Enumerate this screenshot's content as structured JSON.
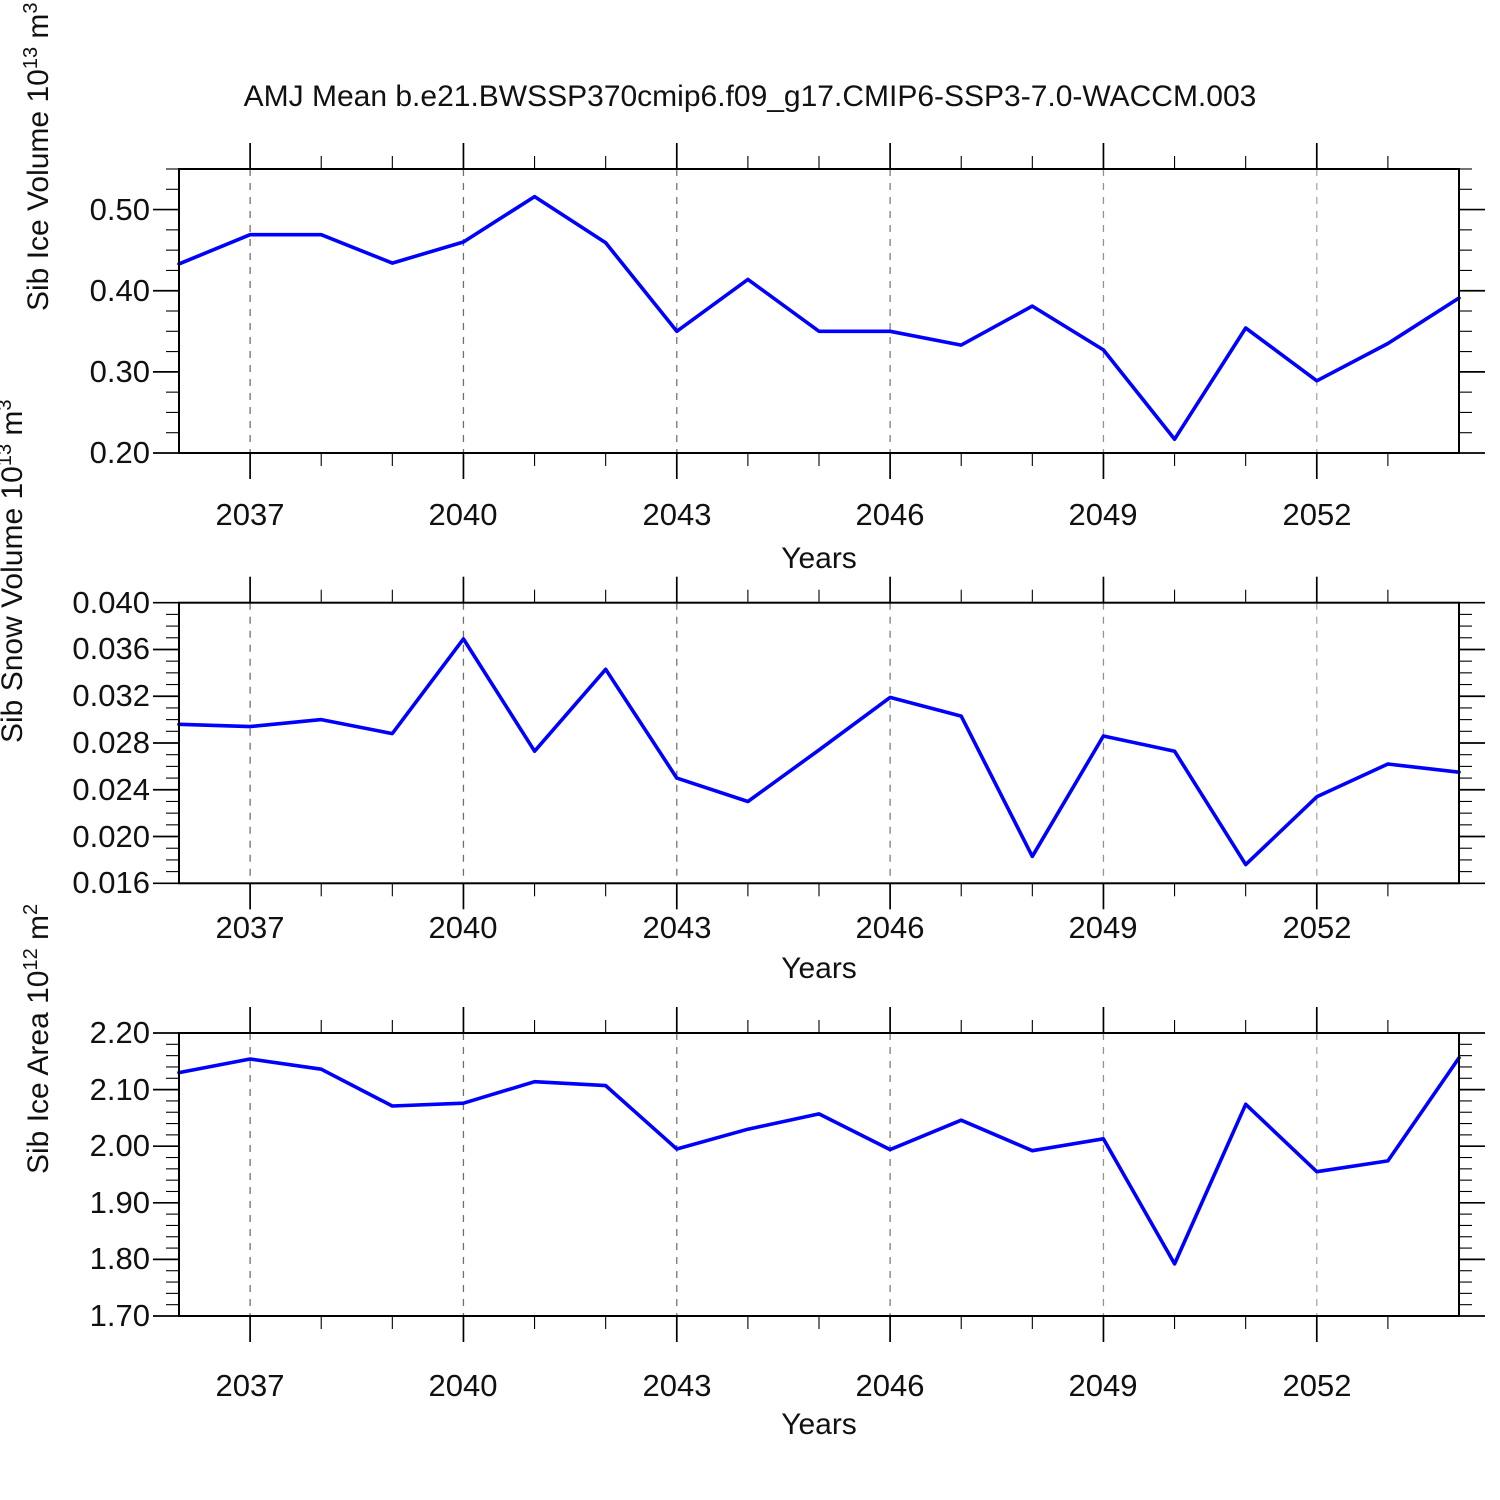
{
  "title": "AMJ Mean b.e21.BWSSP370cmip6.f09_g17.CMIP6-SSP3-7.0-WACCM.003",
  "figure": {
    "background": "#ffffff",
    "line_color": "#0000ff",
    "grid_color": "#7a7a7a"
  },
  "ylabels_rich": [
    {
      "base": "Sib Ice Volume 10",
      "exp": "13",
      "unit": " m",
      "unit_exp": "3"
    },
    {
      "base": "Sib Snow Volume 10",
      "exp": "13",
      "unit": " m",
      "unit_exp": "3"
    },
    {
      "base": "Sib Ice Area 10",
      "exp": "12",
      "unit": " m",
      "unit_exp": "2"
    }
  ],
  "chart_data": [
    {
      "type": "line",
      "title": "",
      "ylabel": "Sib Ice Volume 10^13 m^3",
      "xlabel": "Years",
      "x": [
        2036,
        2037,
        2038,
        2039,
        2040,
        2041,
        2042,
        2043,
        2044,
        2045,
        2046,
        2047,
        2048,
        2049,
        2050,
        2051,
        2052,
        2053,
        2054
      ],
      "values": [
        0.433,
        0.469,
        0.469,
        0.434,
        0.46,
        0.516,
        0.459,
        0.35,
        0.414,
        0.35,
        0.35,
        0.333,
        0.381,
        0.327,
        0.217,
        0.354,
        0.289,
        0.335,
        0.391
      ],
      "xlim": [
        2036,
        2054
      ],
      "ylim": [
        0.2,
        0.55
      ],
      "yticks": [
        0.2,
        0.3,
        0.4,
        0.5
      ],
      "ytick_labels": [
        "0.20",
        "0.30",
        "0.40",
        "0.50"
      ],
      "y_minor_step": 0.025,
      "xtick_years": [
        2037,
        2040,
        2043,
        2046,
        2049,
        2052
      ],
      "xtick_labels": [
        "2037",
        "2040",
        "2043",
        "2046",
        "2049",
        "2052"
      ],
      "x_minor_step": 1,
      "grid": "vertical-dashed-at-major-xticks",
      "legend": "none",
      "line_color": "#0000ff"
    },
    {
      "type": "line",
      "title": "",
      "ylabel": "Sib Snow Volume 10^13 m^3",
      "xlabel": "Years",
      "x": [
        2036,
        2037,
        2038,
        2039,
        2040,
        2041,
        2042,
        2043,
        2044,
        2045,
        2046,
        2047,
        2048,
        2049,
        2050,
        2051,
        2052,
        2053,
        2054
      ],
      "values": [
        0.0296,
        0.0294,
        0.03,
        0.0288,
        0.0369,
        0.0273,
        0.0343,
        0.025,
        0.023,
        0.0274,
        0.0319,
        0.0303,
        0.0183,
        0.0286,
        0.0273,
        0.0176,
        0.0234,
        0.0262,
        0.0255
      ],
      "xlim": [
        2036,
        2054
      ],
      "ylim": [
        0.016,
        0.04
      ],
      "yticks": [
        0.016,
        0.02,
        0.024,
        0.028,
        0.032,
        0.036,
        0.04
      ],
      "ytick_labels": [
        "0.016",
        "0.020",
        "0.024",
        "0.028",
        "0.032",
        "0.036",
        "0.040"
      ],
      "y_minor_step": 0.001,
      "xtick_years": [
        2037,
        2040,
        2043,
        2046,
        2049,
        2052
      ],
      "xtick_labels": [
        "2037",
        "2040",
        "2043",
        "2046",
        "2049",
        "2052"
      ],
      "x_minor_step": 1,
      "grid": "vertical-dashed-at-major-xticks",
      "legend": "none",
      "line_color": "#0000ff"
    },
    {
      "type": "line",
      "title": "",
      "ylabel": "Sib Ice Area 10^12 m^2",
      "xlabel": "Years",
      "x": [
        2036,
        2037,
        2038,
        2039,
        2040,
        2041,
        2042,
        2043,
        2044,
        2045,
        2046,
        2047,
        2048,
        2049,
        2050,
        2051,
        2052,
        2053,
        2054
      ],
      "values": [
        2.13,
        2.154,
        2.136,
        2.071,
        2.076,
        2.114,
        2.107,
        1.995,
        2.03,
        2.057,
        1.994,
        2.046,
        1.992,
        2.013,
        1.792,
        2.074,
        1.955,
        1.974,
        2.156
      ],
      "xlim": [
        2036,
        2054
      ],
      "ylim": [
        1.7,
        2.2
      ],
      "yticks": [
        1.7,
        1.8,
        1.9,
        2.0,
        2.1,
        2.2
      ],
      "ytick_labels": [
        "1.70",
        "1.80",
        "1.90",
        "2.00",
        "2.10",
        "2.20"
      ],
      "y_minor_step": 0.02,
      "xtick_years": [
        2037,
        2040,
        2043,
        2046,
        2049,
        2052
      ],
      "xtick_labels": [
        "2037",
        "2040",
        "2043",
        "2046",
        "2049",
        "2052"
      ],
      "x_minor_step": 1,
      "grid": "vertical-dashed-at-major-xticks",
      "legend": "none",
      "line_color": "#0000ff"
    }
  ]
}
